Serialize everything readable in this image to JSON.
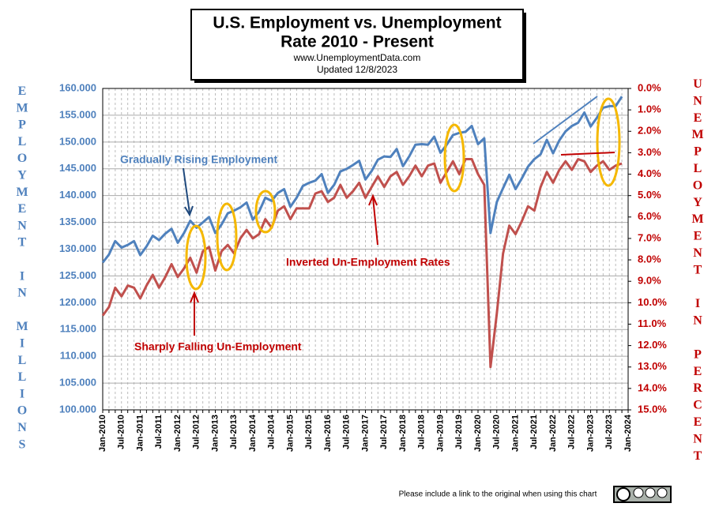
{
  "chart_data": {
    "type": "line",
    "title": [
      "U.S. Employment vs. Unemployment",
      "Rate 2010 - Present"
    ],
    "subtitle": [
      "www.UnemploymentData.com",
      "Updated  12/8/2023"
    ],
    "y_label": "EMPLOYMENT IN MILLIONS",
    "y2_label": "UNEMPLOYMENT IN PERCENT",
    "annotations": [
      "Gradually Rising Employment",
      "Inverted Un-Employment Rates",
      "Sharply Falling Un-Employment"
    ],
    "footer": "Please include a link to the original when using this chart",
    "categories": [
      "Jan-2010",
      null,
      null,
      "Jul-2010",
      null,
      null,
      "Jan-2011",
      null,
      null,
      "Jul-2011",
      null,
      null,
      "Jan-2012",
      null,
      null,
      "Jul-2012",
      null,
      null,
      "Jan-2013",
      null,
      null,
      "Jul-2013",
      null,
      null,
      "Jan-2014",
      null,
      null,
      "Jul-2014",
      null,
      null,
      "Jan-2015",
      null,
      null,
      "Jul-2015",
      null,
      null,
      "Jan-2016",
      null,
      null,
      "Jul-2016",
      null,
      null,
      "Jan-2017",
      null,
      null,
      "Jul-2017",
      null,
      null,
      "Jan-2018",
      null,
      null,
      "Jul-2018",
      null,
      null,
      "Jan-2019",
      null,
      null,
      "Jul-2019",
      null,
      null,
      "Jan-2020",
      null,
      null,
      "Jul-2020",
      null,
      null,
      "Jan-2021",
      null,
      null,
      "Jul-2021",
      null,
      null,
      "Jan-2022",
      null,
      null,
      "Jul-2022",
      null,
      null,
      "Jan-2023",
      null,
      null,
      "Jul-2023",
      null,
      null,
      "Jan-2024"
    ],
    "series": [
      {
        "name": "Employment",
        "color": "#4f81bd",
        "values": [
          127.5,
          129.0,
          131.5,
          130.3,
          130.8,
          131.5,
          128.9,
          130.5,
          132.5,
          131.7,
          132.9,
          133.8,
          131.2,
          133.0,
          135.3,
          134.0,
          135.0,
          136.0,
          133.0,
          134.6,
          136.7,
          137.2,
          137.8,
          138.7,
          135.5,
          137.0,
          139.6,
          139.0,
          140.5,
          141.2,
          137.9,
          139.6,
          141.8,
          142.4,
          142.8,
          144.0,
          140.5,
          142.0,
          144.5,
          145.0,
          145.7,
          146.5,
          143.0,
          144.6,
          146.7,
          147.3,
          147.2,
          148.7,
          145.5,
          147.3,
          149.5,
          149.6,
          149.5,
          151.0,
          148.0,
          149.5,
          151.3,
          151.7,
          151.9,
          153.0,
          149.6,
          150.7,
          133.0,
          138.8,
          141.4,
          143.9,
          141.2,
          143.2,
          145.4,
          146.8,
          147.7,
          150.4,
          147.9,
          150.3,
          152.0,
          153.0,
          153.6,
          155.5,
          152.9,
          154.5,
          156.4,
          156.7,
          156.7,
          158.5,
          null
        ]
      },
      {
        "name": "Unemployment Rate",
        "color": "#c0504d",
        "axis": "y2",
        "values": [
          10.6,
          10.2,
          9.3,
          9.7,
          9.2,
          9.3,
          9.8,
          9.2,
          8.7,
          9.3,
          8.8,
          8.2,
          8.8,
          8.4,
          7.9,
          8.6,
          7.6,
          7.4,
          8.5,
          7.6,
          7.3,
          7.7,
          7.0,
          6.6,
          7.0,
          6.8,
          6.1,
          6.5,
          5.7,
          5.5,
          6.1,
          5.6,
          5.6,
          5.6,
          4.9,
          4.8,
          5.3,
          5.1,
          4.5,
          5.1,
          4.8,
          4.4,
          5.1,
          4.6,
          4.1,
          4.6,
          4.1,
          3.9,
          4.5,
          4.1,
          3.6,
          4.1,
          3.6,
          3.5,
          4.4,
          3.9,
          3.4,
          4.0,
          3.3,
          3.3,
          4.0,
          4.5,
          13.0,
          10.5,
          7.7,
          6.4,
          6.8,
          6.2,
          5.5,
          5.7,
          4.6,
          3.9,
          4.4,
          3.8,
          3.4,
          3.8,
          3.3,
          3.4,
          3.9,
          3.6,
          3.4,
          3.8,
          3.6,
          3.5,
          null
        ]
      }
    ],
    "ylim": [
      100,
      160
    ],
    "yticks": [
      {
        "value": 100,
        "label": "100.000"
      },
      {
        "value": 105,
        "label": "105.000"
      },
      {
        "value": 110,
        "label": "110.000"
      },
      {
        "value": 115,
        "label": "115.000"
      },
      {
        "value": 120,
        "label": "120.000"
      },
      {
        "value": 125,
        "label": "125.000"
      },
      {
        "value": 130,
        "label": "130.000"
      },
      {
        "value": 135,
        "label": "135.000"
      },
      {
        "value": 140,
        "label": "140.000"
      },
      {
        "value": 145,
        "label": "145.000"
      },
      {
        "value": 150,
        "label": "150.000"
      },
      {
        "value": 155,
        "label": "155.000"
      },
      {
        "value": 160,
        "label": "160.000"
      }
    ],
    "y2lim": [
      15,
      0
    ],
    "y2ticks": [
      {
        "value": 0,
        "label": "0.0%"
      },
      {
        "value": 1,
        "label": "1.0%"
      },
      {
        "value": 2,
        "label": "2.0%"
      },
      {
        "value": 3,
        "label": "3.0%"
      },
      {
        "value": 4,
        "label": "4.0%"
      },
      {
        "value": 5,
        "label": "5.0%"
      },
      {
        "value": 6,
        "label": "6.0%"
      },
      {
        "value": 7,
        "label": "7.0%"
      },
      {
        "value": 8,
        "label": "8.0%"
      },
      {
        "value": 9,
        "label": "9.0%"
      },
      {
        "value": 10,
        "label": "10.0%"
      },
      {
        "value": 11,
        "label": "11.0%"
      },
      {
        "value": 12,
        "label": "12.0%"
      },
      {
        "value": 13,
        "label": "13.0%"
      },
      {
        "value": 14,
        "label": "14.0%"
      },
      {
        "value": 15,
        "label": "15.0%"
      }
    ],
    "grid": true
  }
}
